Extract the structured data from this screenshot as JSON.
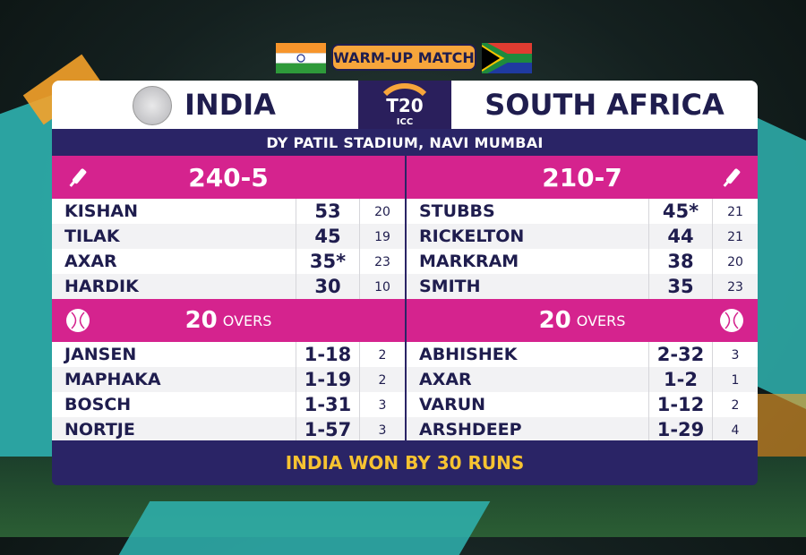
{
  "header": {
    "match_type": "WARM-UP MATCH"
  },
  "teams": {
    "left": "INDIA",
    "right": "SOUTH AFRICA"
  },
  "logo": {
    "t20_text": "T20",
    "icc_text": "ICC"
  },
  "venue": "DY PATIL STADIUM, NAVI MUMBAI",
  "india_innings": {
    "score": "240-5",
    "batters": [
      {
        "name": "KISHAN",
        "runs": "53",
        "balls": "20"
      },
      {
        "name": "TILAK",
        "runs": "45",
        "balls": "19"
      },
      {
        "name": "AXAR",
        "runs": "35*",
        "balls": "23"
      },
      {
        "name": "HARDIK",
        "runs": "30",
        "balls": "10"
      }
    ],
    "overs": "20",
    "overs_label": "OVERS"
  },
  "sa_innings": {
    "score": "210-7",
    "batters": [
      {
        "name": "STUBBS",
        "runs": "45*",
        "balls": "21"
      },
      {
        "name": "RICKELTON",
        "runs": "44",
        "balls": "21"
      },
      {
        "name": "MARKRAM",
        "runs": "38",
        "balls": "20"
      },
      {
        "name": "SMITH",
        "runs": "35",
        "balls": "23"
      }
    ],
    "overs": "20",
    "overs_label": "OVERS"
  },
  "sa_bowling": [
    {
      "name": "JANSEN",
      "figures": "1-18",
      "overs": "2"
    },
    {
      "name": "MAPHAKA",
      "figures": "1-19",
      "overs": "2"
    },
    {
      "name": "BOSCH",
      "figures": "1-31",
      "overs": "3"
    },
    {
      "name": "NORTJE",
      "figures": "1-57",
      "overs": "3"
    }
  ],
  "india_bowling": [
    {
      "name": "ABHISHEK",
      "figures": "2-32",
      "overs": "3"
    },
    {
      "name": "AXAR",
      "figures": "1-2",
      "overs": "1"
    },
    {
      "name": "VARUN",
      "figures": "1-12",
      "overs": "2"
    },
    {
      "name": "ARSHDEEP",
      "figures": "1-29",
      "overs": "4"
    }
  ],
  "result": "INDIA WON BY 30 RUNS",
  "colors": {
    "navy": "#2a2466",
    "pink": "#d5238e",
    "orange": "#f7a53b",
    "result_yellow": "#f7c331"
  },
  "icons": {
    "bat": "cricket-bat-icon",
    "ball": "cricket-ball-icon"
  }
}
